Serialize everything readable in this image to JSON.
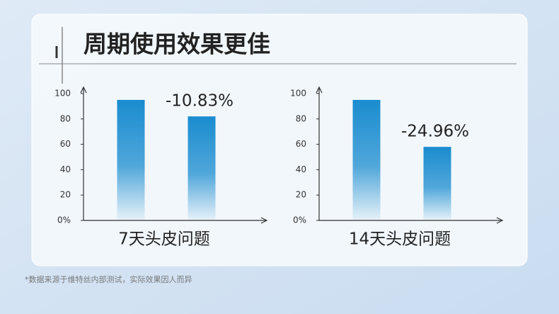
{
  "title": "周期使用效果更佳",
  "footnote": "*数据来源于维特丝内部测试，实际效果因人而异",
  "chart_data": [
    {
      "type": "bar",
      "x_label": "7天头皮问题",
      "categories": [
        null,
        null
      ],
      "values": [
        95,
        82
      ],
      "annotation": "-10.83%",
      "color": "#1a8ccf",
      "ylim": [
        0,
        100
      ],
      "yticks": [
        {
          "value": 0,
          "label": "0%"
        },
        20,
        40,
        60,
        80,
        100
      ]
    },
    {
      "type": "bar",
      "x_label": "14天头皮问题",
      "categories": [
        null,
        null
      ],
      "values": [
        95,
        58
      ],
      "annotation": "-24.96%",
      "color": "#1a8ccf",
      "ylim": [
        0,
        100
      ],
      "yticks": [
        {
          "value": 0,
          "label": "0%"
        },
        20,
        40,
        60,
        80,
        100
      ]
    }
  ]
}
